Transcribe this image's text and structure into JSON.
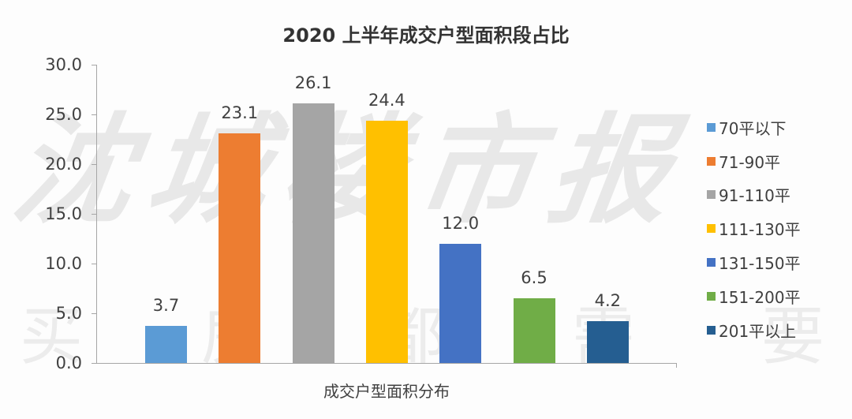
{
  "chart_data": {
    "type": "bar",
    "title": "2020 上半年成交户型面积段占比",
    "xlabel": "成交户型面积分布",
    "ylabel": "",
    "ylim": [
      0,
      30
    ],
    "yticks": [
      "0.0",
      "5.0",
      "10.0",
      "15.0",
      "20.0",
      "25.0",
      "30.0"
    ],
    "grid": false,
    "legend_position": "right",
    "categories": [
      "70平以下",
      "71-90平",
      "91-110平",
      "111-130平",
      "131-150平",
      "151-200平",
      "201平以上"
    ],
    "values": [
      3.7,
      23.1,
      26.1,
      24.4,
      12.0,
      6.5,
      4.2
    ],
    "value_labels": [
      "3.7",
      "23.1",
      "26.1",
      "24.4",
      "12.0",
      "6.5",
      "4.2"
    ],
    "colors": [
      "#5b9bd5",
      "#ed7d31",
      "#a5a5a5",
      "#ffc000",
      "#4472c4",
      "#70ad47",
      "#255e91"
    ]
  },
  "watermark": {
    "top": "沈城楼市报",
    "bottom": [
      "买",
      "房",
      "都",
      "需",
      "要"
    ]
  }
}
